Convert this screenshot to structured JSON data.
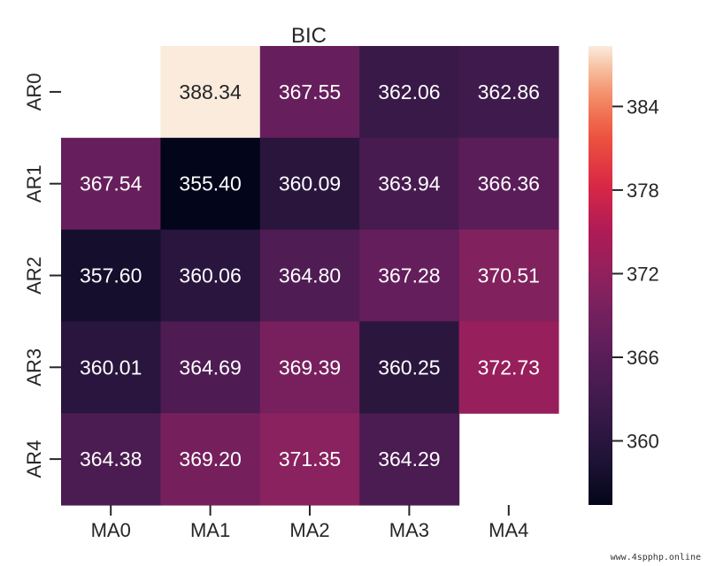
{
  "chart_data": {
    "type": "heatmap",
    "title": "BIC",
    "xlabel": "",
    "ylabel": "",
    "x_categories": [
      "MA0",
      "MA1",
      "MA2",
      "MA3",
      "MA4"
    ],
    "y_categories": [
      "AR0",
      "AR1",
      "AR2",
      "AR3",
      "AR4"
    ],
    "values": [
      [
        null,
        388.34,
        367.55,
        362.06,
        362.86
      ],
      [
        367.54,
        355.4,
        360.09,
        363.94,
        366.36
      ],
      [
        357.6,
        360.06,
        364.8,
        367.28,
        370.51
      ],
      [
        360.01,
        364.69,
        369.39,
        360.25,
        372.73
      ],
      [
        364.38,
        369.2,
        371.35,
        364.29,
        null
      ]
    ],
    "value_labels": [
      [
        "",
        "388.34",
        "367.55",
        "362.06",
        "362.86"
      ],
      [
        "367.54",
        "355.40",
        "360.09",
        "363.94",
        "366.36"
      ],
      [
        "357.60",
        "360.06",
        "364.80",
        "367.28",
        "370.51"
      ],
      [
        "360.01",
        "364.69",
        "369.39",
        "360.25",
        "372.73"
      ],
      [
        "364.38",
        "369.20",
        "371.35",
        "364.29",
        ""
      ]
    ],
    "colormap": "rocket",
    "colorbar": {
      "range": [
        355.4,
        388.34
      ],
      "ticks": [
        360,
        366,
        372,
        378,
        384
      ],
      "tick_labels": [
        "360",
        "366",
        "372",
        "378",
        "384"
      ]
    },
    "grid": false,
    "legend": "colorbar-right"
  },
  "watermark": "www.4spphp.online"
}
